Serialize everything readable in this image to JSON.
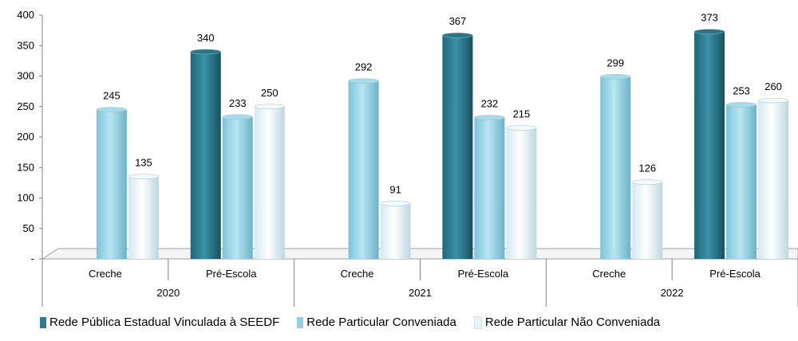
{
  "chart_data": {
    "type": "bar",
    "ylim": [
      0,
      400
    ],
    "yticks": [
      "-",
      "50",
      "100",
      "150",
      "200",
      "250",
      "300",
      "350",
      "400"
    ],
    "groups": [
      {
        "year": "2020",
        "categories": [
          {
            "name": "Creche",
            "values": [
              null,
              245,
              135
            ]
          },
          {
            "name": "Pré-Escola",
            "values": [
              340,
              233,
              250
            ]
          }
        ]
      },
      {
        "year": "2021",
        "categories": [
          {
            "name": "Creche",
            "values": [
              null,
              292,
              91
            ]
          },
          {
            "name": "Pré-Escola",
            "values": [
              367,
              232,
              215
            ]
          }
        ]
      },
      {
        "year": "2022",
        "categories": [
          {
            "name": "Creche",
            "values": [
              null,
              299,
              126
            ]
          },
          {
            "name": "Pré-Escola",
            "values": [
              373,
              253,
              260
            ]
          }
        ]
      }
    ],
    "series": [
      {
        "name": "Rede Pública Estadual Vinculada à SEEDF",
        "color": "#2e7d8f"
      },
      {
        "name": "Rede Particular Conveniada",
        "color": "#8fd0e3"
      },
      {
        "name": "Rede Particular Não Conveniada",
        "color": "#e6f4f8"
      }
    ],
    "grid": false,
    "legend": "bottom"
  }
}
